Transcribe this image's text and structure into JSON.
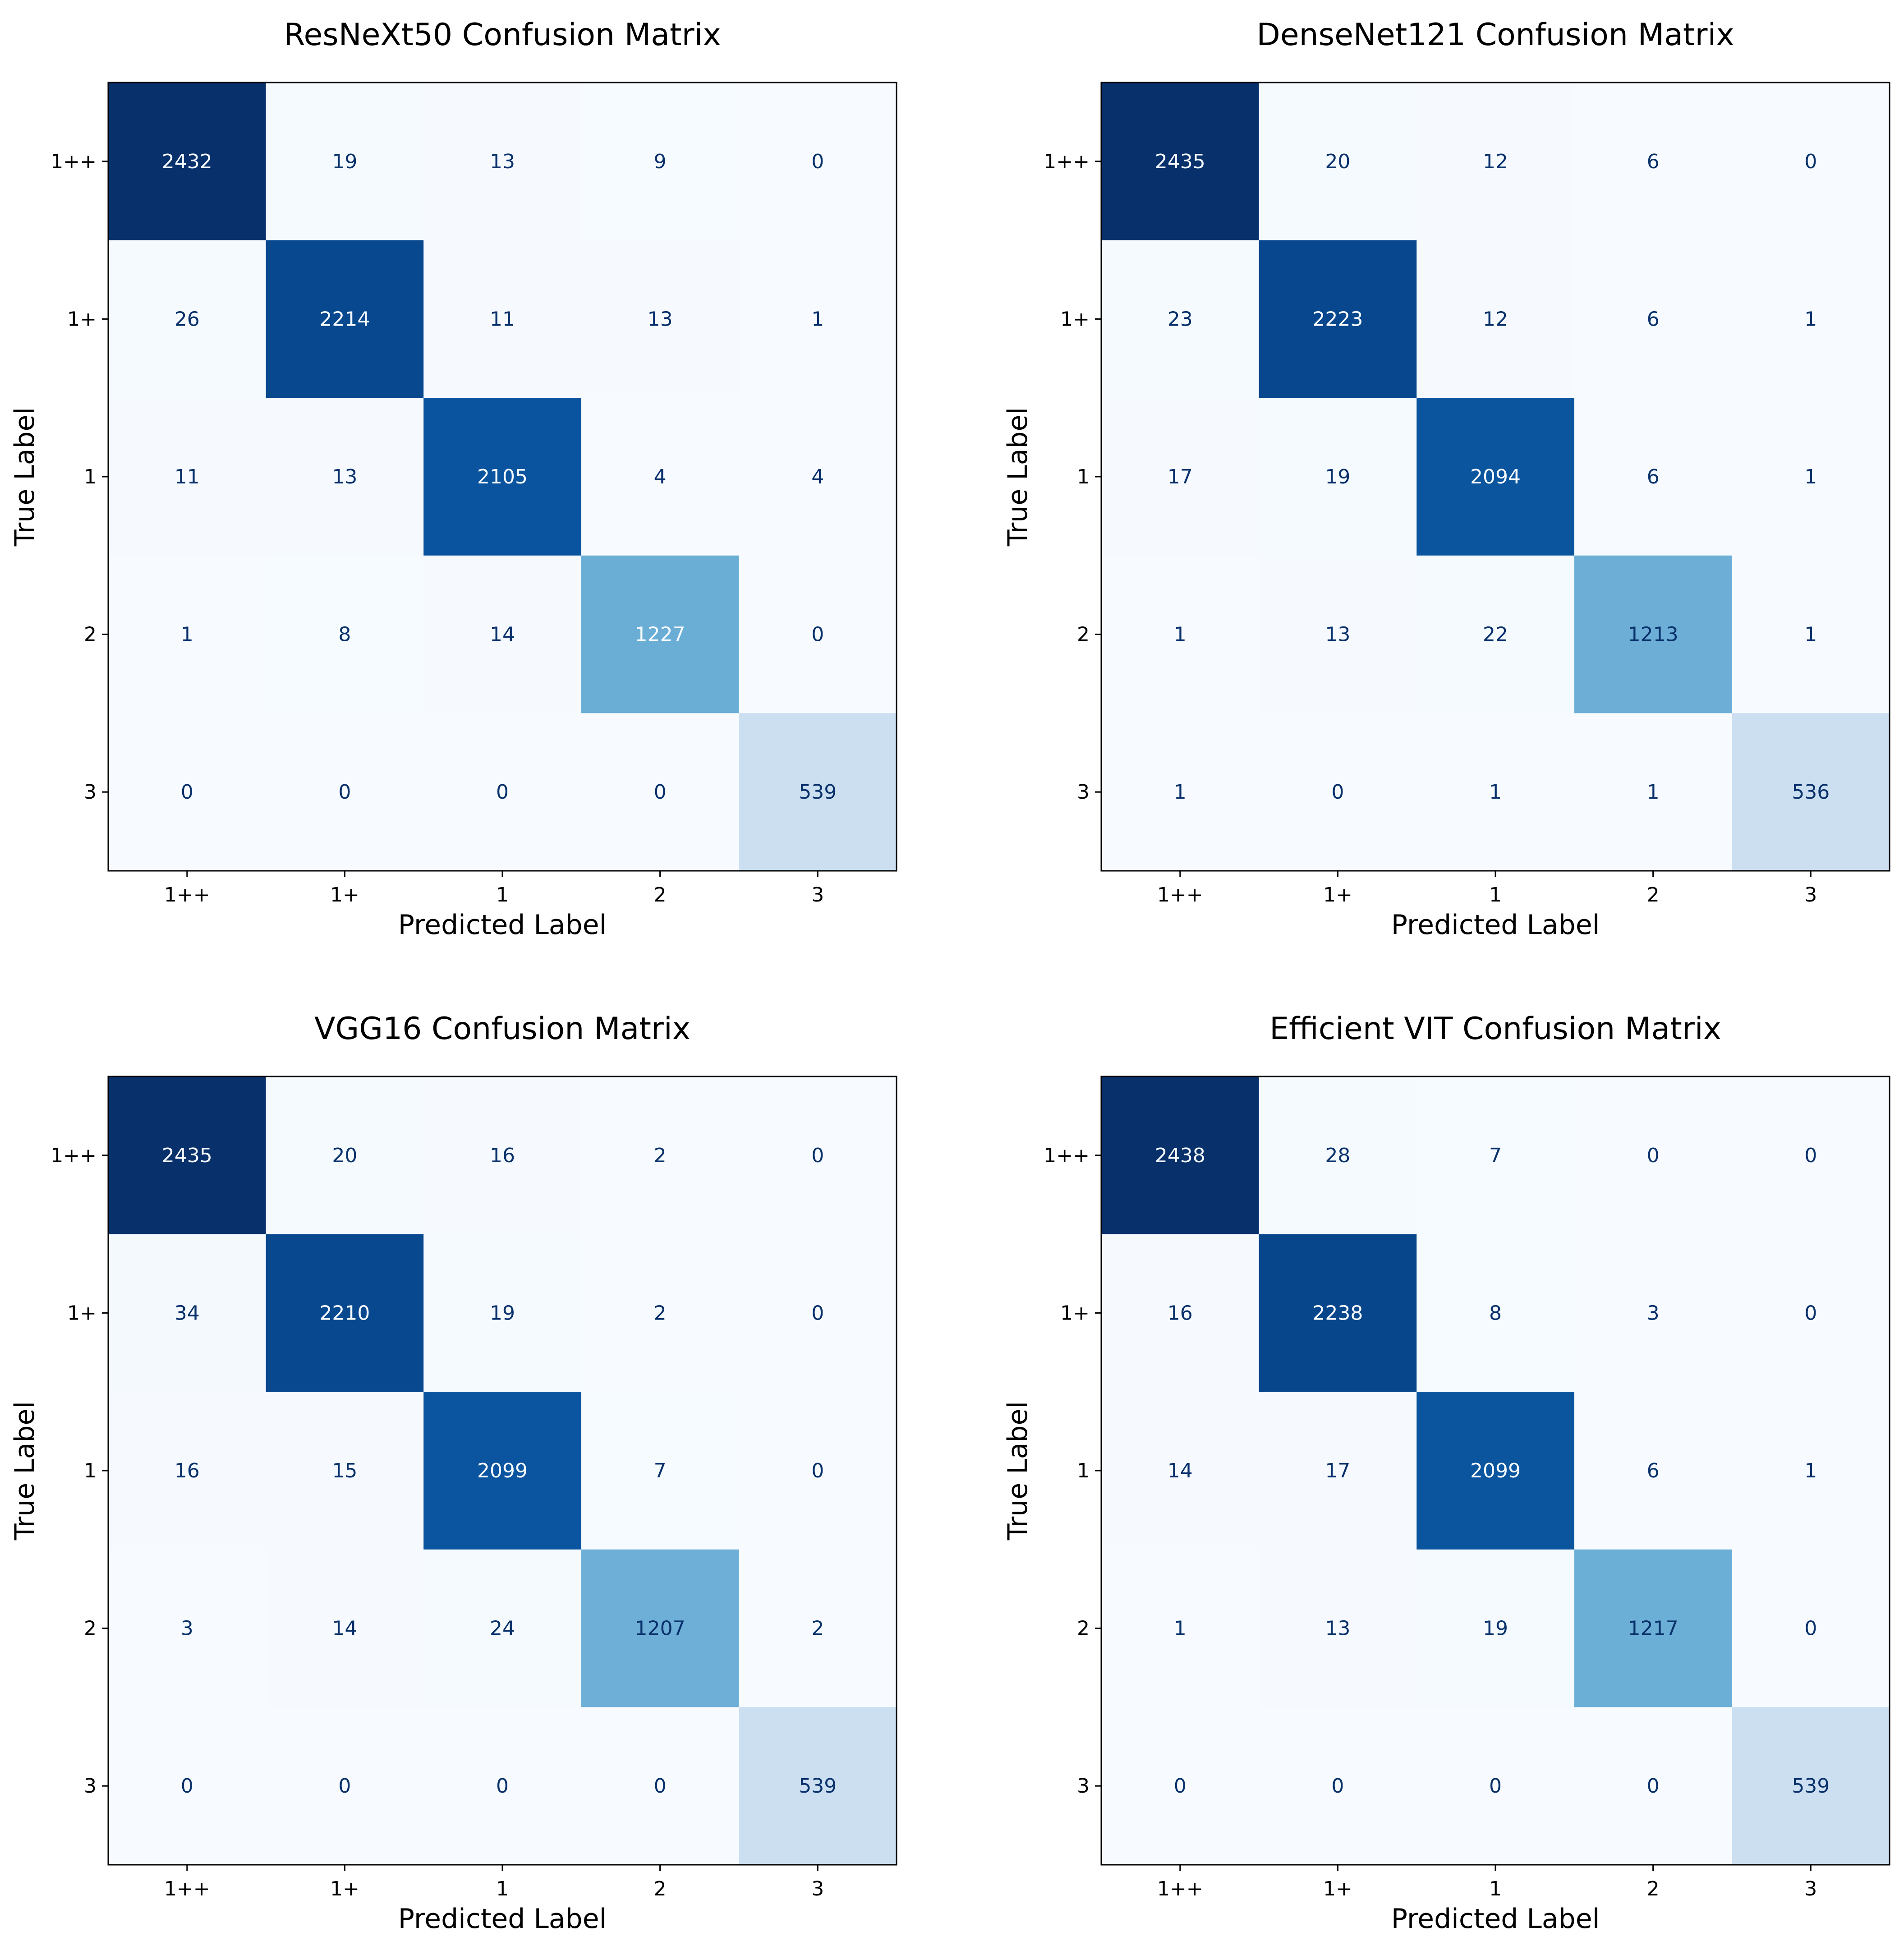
{
  "chart_data": [
    {
      "type": "heatmap",
      "title": "ResNeXt50 Confusion Matrix",
      "xlabel": "Predicted Label",
      "ylabel": "True Label",
      "x_categories": [
        "1++",
        "1+",
        "1",
        "2",
        "3"
      ],
      "y_categories": [
        "1++",
        "1+",
        "1",
        "2",
        "3"
      ],
      "colormap": "Blues",
      "values": [
        [
          2432,
          19,
          13,
          9,
          0
        ],
        [
          26,
          2214,
          11,
          13,
          1
        ],
        [
          11,
          13,
          2105,
          4,
          4
        ],
        [
          1,
          8,
          14,
          1227,
          0
        ],
        [
          0,
          0,
          0,
          0,
          539
        ]
      ]
    },
    {
      "type": "heatmap",
      "title": "DenseNet121 Confusion Matrix",
      "xlabel": "Predicted Label",
      "ylabel": "True Label",
      "x_categories": [
        "1++",
        "1+",
        "1",
        "2",
        "3"
      ],
      "y_categories": [
        "1++",
        "1+",
        "1",
        "2",
        "3"
      ],
      "colormap": "Blues",
      "values": [
        [
          2435,
          20,
          12,
          6,
          0
        ],
        [
          23,
          2223,
          12,
          6,
          1
        ],
        [
          17,
          19,
          2094,
          6,
          1
        ],
        [
          1,
          13,
          22,
          1213,
          1
        ],
        [
          1,
          0,
          1,
          1,
          536
        ]
      ]
    },
    {
      "type": "heatmap",
      "title": "VGG16 Confusion Matrix",
      "xlabel": "Predicted Label",
      "ylabel": "True Label",
      "x_categories": [
        "1++",
        "1+",
        "1",
        "2",
        "3"
      ],
      "y_categories": [
        "1++",
        "1+",
        "1",
        "2",
        "3"
      ],
      "colormap": "Blues",
      "values": [
        [
          2435,
          20,
          16,
          2,
          0
        ],
        [
          34,
          2210,
          19,
          2,
          0
        ],
        [
          16,
          15,
          2099,
          7,
          0
        ],
        [
          3,
          14,
          24,
          1207,
          2
        ],
        [
          0,
          0,
          0,
          0,
          539
        ]
      ]
    },
    {
      "type": "heatmap",
      "title": "Efficient VIT Confusion Matrix",
      "xlabel": "Predicted Label",
      "ylabel": "True Label",
      "x_categories": [
        "1++",
        "1+",
        "1",
        "2",
        "3"
      ],
      "y_categories": [
        "1++",
        "1+",
        "1",
        "2",
        "3"
      ],
      "colormap": "Blues",
      "values": [
        [
          2438,
          28,
          7,
          0,
          0
        ],
        [
          16,
          2238,
          8,
          3,
          0
        ],
        [
          14,
          17,
          2099,
          6,
          1
        ],
        [
          1,
          13,
          19,
          1217,
          0
        ],
        [
          0,
          0,
          0,
          0,
          539
        ]
      ]
    }
  ]
}
